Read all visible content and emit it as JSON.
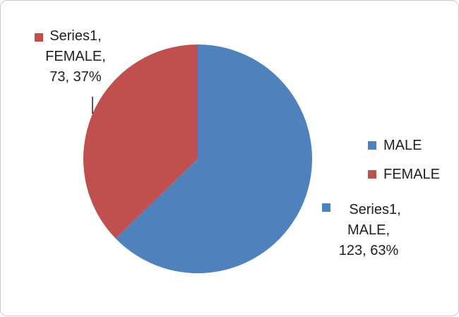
{
  "colors": {
    "male": "#4f81bd",
    "female": "#c0504d",
    "border": "#c9c9c9",
    "text": "#1f1f1f",
    "leader": "#000000"
  },
  "chart_data": {
    "type": "pie",
    "categories": [
      "MALE",
      "FEMALE"
    ],
    "series": [
      {
        "name": "Series1",
        "values": [
          123,
          73
        ]
      }
    ],
    "percent_labels": [
      "63%",
      "37%"
    ],
    "data_labels": [
      [
        "Series1,",
        "MALE,",
        "123, 63%"
      ],
      [
        "Series1,",
        "FEMALE,",
        "73, 37%"
      ]
    ],
    "legend": [
      "MALE",
      "FEMALE"
    ],
    "legend_position": "right",
    "start_angle_deg": 0,
    "direction": "clockwise"
  }
}
